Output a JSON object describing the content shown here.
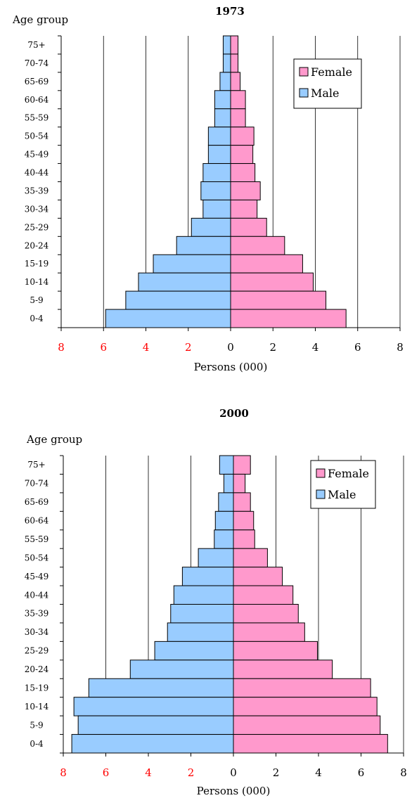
{
  "chart_data": [
    {
      "type": "bar",
      "title": "1973",
      "ylabel": "Age group",
      "xlabel": "Persons (000)",
      "xlim": [
        -8,
        8
      ],
      "xticks": [
        "8",
        "6",
        "4",
        "2",
        "0",
        "2",
        "4",
        "6",
        "8"
      ],
      "categories": [
        "75+",
        "70-74",
        "65-69",
        "60-64",
        "55-59",
        "50-54",
        "45-49",
        "40-44",
        "35-39",
        "30-34",
        "25-29",
        "20-24",
        "15-19",
        "10-14",
        "5-9",
        "0-4"
      ],
      "series": [
        {
          "name": "Female",
          "color": "#ff99cc",
          "values": [
            0.35,
            0.35,
            0.45,
            0.7,
            0.7,
            1.1,
            1.05,
            1.15,
            1.4,
            1.25,
            1.7,
            2.55,
            3.4,
            3.9,
            4.5,
            5.45
          ]
        },
        {
          "name": "Male",
          "color": "#99ccff",
          "values": [
            0.35,
            0.35,
            0.5,
            0.75,
            0.75,
            1.05,
            1.05,
            1.3,
            1.4,
            1.3,
            1.85,
            2.55,
            3.65,
            4.35,
            4.95,
            5.9
          ]
        }
      ],
      "legend_position": "top-right",
      "grid": true
    },
    {
      "type": "bar",
      "title": "2000",
      "ylabel": "Age group",
      "xlabel": "Persons (000)",
      "xlim": [
        -8,
        8
      ],
      "xticks": [
        "8",
        "6",
        "4",
        "2",
        "0",
        "2",
        "4",
        "6",
        "8"
      ],
      "categories": [
        "75+",
        "70-74",
        "65-69",
        "60-64",
        "55-59",
        "50-54",
        "45-49",
        "40-44",
        "35-39",
        "30-34",
        "25-29",
        "20-24",
        "15-19",
        "10-14",
        "5-9",
        "0-4"
      ],
      "series": [
        {
          "name": "Female",
          "color": "#ff99cc",
          "values": [
            0.8,
            0.55,
            0.8,
            0.95,
            1.0,
            1.6,
            2.3,
            2.8,
            3.05,
            3.35,
            3.95,
            4.65,
            6.45,
            6.75,
            6.9,
            7.25
          ]
        },
        {
          "name": "Male",
          "color": "#99ccff",
          "values": [
            0.65,
            0.45,
            0.7,
            0.85,
            0.9,
            1.65,
            2.4,
            2.8,
            2.95,
            3.1,
            3.7,
            4.85,
            6.8,
            7.5,
            7.3,
            7.6
          ]
        }
      ],
      "legend_position": "top-right",
      "grid": true
    }
  ]
}
